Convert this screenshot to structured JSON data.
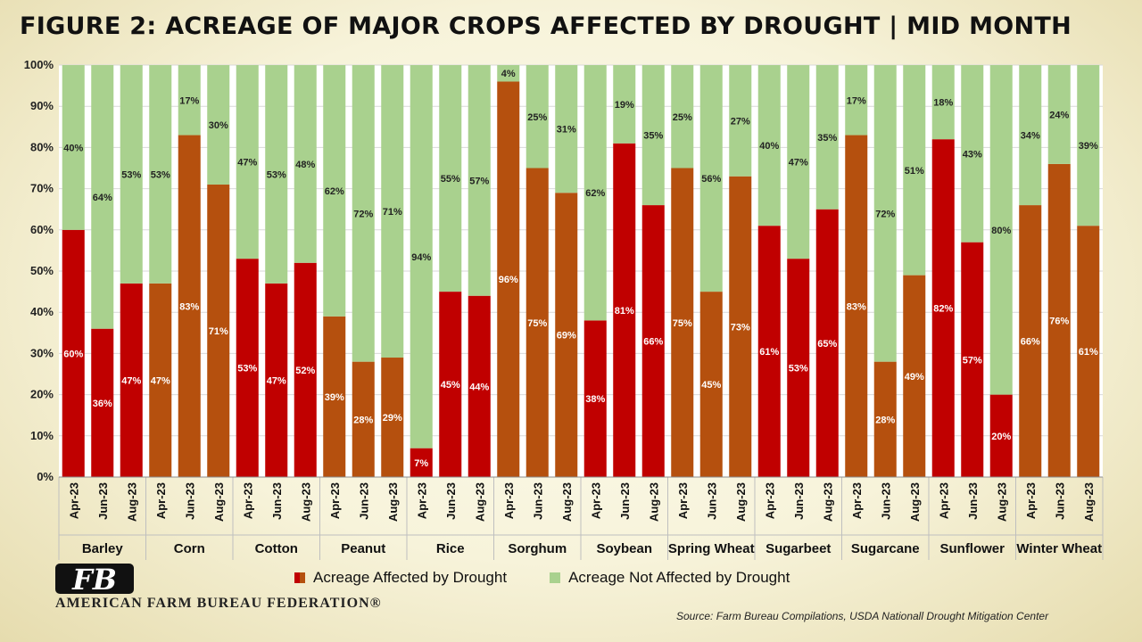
{
  "title": "FIGURE 2: ACREAGE OF MAJOR CROPS AFFECTED BY DROUGHT | MID MONTH",
  "logo": {
    "org_name": "AMERICAN FARM BUREAU FEDERATION®",
    "mark_text": "FB"
  },
  "source": "Source: Farm Bureau Compilations, USDA Nationall Drought Mitigation Center",
  "colors": {
    "affected_primary": "#c00000",
    "affected_secondary": "#b5500e",
    "not_affected": "#a9d18e"
  },
  "chart_data": {
    "type": "bar",
    "stacked": true,
    "percent": true,
    "ylim": [
      0,
      100
    ],
    "yticks": [
      "0%",
      "10%",
      "20%",
      "30%",
      "40%",
      "50%",
      "60%",
      "70%",
      "80%",
      "90%",
      "100%"
    ],
    "periods": [
      "Apr-23",
      "Jun-23",
      "Aug-23"
    ],
    "groups": [
      {
        "crop": "Barley",
        "affected": [
          60,
          36,
          47
        ],
        "not_affected": [
          40,
          64,
          53
        ],
        "color": "primary"
      },
      {
        "crop": "Corn",
        "affected": [
          47,
          83,
          71
        ],
        "not_affected": [
          53,
          17,
          30
        ],
        "color": "secondary"
      },
      {
        "crop": "Cotton",
        "affected": [
          53,
          47,
          52
        ],
        "not_affected": [
          47,
          53,
          48
        ],
        "color": "primary"
      },
      {
        "crop": "Peanut",
        "affected": [
          39,
          28,
          29
        ],
        "not_affected": [
          62,
          72,
          71
        ],
        "color": "secondary"
      },
      {
        "crop": "Rice",
        "affected": [
          7,
          45,
          44
        ],
        "not_affected": [
          94,
          55,
          57
        ],
        "color": "primary"
      },
      {
        "crop": "Sorghum",
        "affected": [
          96,
          75,
          69
        ],
        "not_affected": [
          4,
          25,
          31
        ],
        "color": "secondary"
      },
      {
        "crop": "Soybean",
        "affected": [
          38,
          81,
          66
        ],
        "not_affected": [
          62,
          19,
          35
        ],
        "color": "primary"
      },
      {
        "crop": "Spring Wheat",
        "affected": [
          75,
          45,
          73
        ],
        "not_affected": [
          25,
          56,
          27
        ],
        "color": "secondary"
      },
      {
        "crop": "Sugarbeet",
        "affected": [
          61,
          53,
          65
        ],
        "not_affected": [
          40,
          47,
          35
        ],
        "color": "primary"
      },
      {
        "crop": "Sugarcane",
        "affected": [
          83,
          28,
          49
        ],
        "not_affected": [
          17,
          72,
          51
        ],
        "color": "secondary"
      },
      {
        "crop": "Sunflower",
        "affected": [
          82,
          57,
          20
        ],
        "not_affected": [
          18,
          43,
          80
        ],
        "color": "primary"
      },
      {
        "crop": "Winter Wheat",
        "affected": [
          66,
          76,
          61
        ],
        "not_affected": [
          34,
          24,
          39
        ],
        "color": "secondary"
      }
    ],
    "series": [
      {
        "name": "Acreage Affected by Drought"
      },
      {
        "name": "Acreage Not Affected by Drought"
      }
    ],
    "legend": "bottom",
    "grid": true
  }
}
